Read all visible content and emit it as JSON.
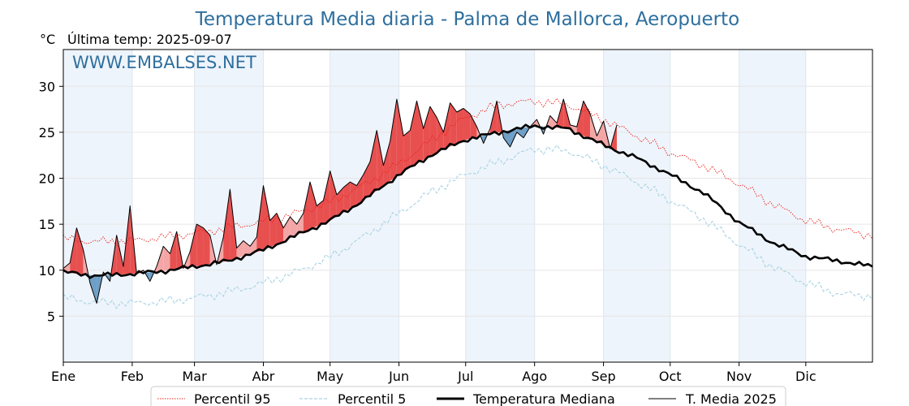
{
  "chart_data": {
    "type": "line",
    "title": "Temperatura Media diaria - Palma de Mallorca, Aeropuerto",
    "unit_label": "°C",
    "subtitle": "Última temp: 2025-09-07",
    "watermark": "WWW.EMBALSES.NET",
    "xlabel": "",
    "ylabel": "",
    "x_domain": [
      1,
      365
    ],
    "ylim": [
      0,
      34
    ],
    "y_ticks": [
      5,
      10,
      15,
      20,
      25,
      30
    ],
    "grid": true,
    "legend_position": "bottom",
    "months": [
      {
        "label": "Ene",
        "day": 1
      },
      {
        "label": "Feb",
        "day": 32
      },
      {
        "label": "Mar",
        "day": 60
      },
      {
        "label": "Abr",
        "day": 91
      },
      {
        "label": "May",
        "day": 121
      },
      {
        "label": "Jun",
        "day": 152
      },
      {
        "label": "Jul",
        "day": 182
      },
      {
        "label": "Ago",
        "day": 213
      },
      {
        "label": "Sep",
        "day": 244
      },
      {
        "label": "Oct",
        "day": 274
      },
      {
        "label": "Nov",
        "day": 305
      },
      {
        "label": "Dic",
        "day": 335
      }
    ],
    "colors": {
      "p95": "#e8231c",
      "p5": "#a9d3e3",
      "median": "#000000",
      "current": "#000000",
      "above_fill": "#f4a6a6",
      "above_strong": "#e85050",
      "below_fill": "#6f9fc6",
      "title": "#2e6f9e",
      "month_band": "#eef4fb"
    },
    "series": [
      {
        "name": "Percentil 95",
        "style": "dotted",
        "x": [
          1,
          15,
          32,
          46,
          60,
          75,
          91,
          106,
          121,
          136,
          152,
          167,
          182,
          197,
          213,
          228,
          244,
          259,
          274,
          289,
          305,
          320,
          335,
          350,
          365
        ],
        "values": [
          13.4,
          13.1,
          13.2,
          13.6,
          14.0,
          14.6,
          15.3,
          16.2,
          17.4,
          19.2,
          21.6,
          24.2,
          26.6,
          28.0,
          28.4,
          28.0,
          26.4,
          24.6,
          22.8,
          21.4,
          19.4,
          17.2,
          15.4,
          14.4,
          13.8
        ]
      },
      {
        "name": "Percentil 5",
        "style": "dashed",
        "x": [
          1,
          15,
          32,
          46,
          60,
          75,
          91,
          106,
          121,
          136,
          152,
          167,
          182,
          197,
          213,
          228,
          244,
          259,
          274,
          289,
          305,
          320,
          335,
          350,
          365
        ],
        "values": [
          7.0,
          6.5,
          6.4,
          6.6,
          7.0,
          7.6,
          8.6,
          9.8,
          11.4,
          13.6,
          16.2,
          18.6,
          20.4,
          21.8,
          23.2,
          23.0,
          21.4,
          19.6,
          17.6,
          15.6,
          12.8,
          10.4,
          8.6,
          7.4,
          7.2
        ]
      },
      {
        "name": "Temperatura Mediana",
        "style": "solid-thick",
        "x": [
          1,
          15,
          32,
          46,
          60,
          75,
          91,
          106,
          121,
          136,
          152,
          167,
          182,
          197,
          213,
          228,
          244,
          259,
          274,
          289,
          305,
          320,
          335,
          350,
          365
        ],
        "values": [
          9.8,
          9.4,
          9.6,
          9.9,
          10.4,
          11.0,
          12.2,
          13.8,
          15.4,
          17.6,
          20.4,
          22.6,
          24.2,
          25.0,
          25.7,
          25.4,
          23.6,
          22.2,
          20.4,
          18.4,
          15.2,
          13.0,
          11.5,
          11.0,
          10.4
        ]
      },
      {
        "name": "T. Media 2025",
        "style": "solid-thin",
        "x": [
          1,
          4,
          7,
          10,
          13,
          16,
          19,
          22,
          25,
          28,
          31,
          34,
          37,
          40,
          43,
          46,
          49,
          52,
          55,
          58,
          61,
          64,
          67,
          70,
          73,
          76,
          79,
          82,
          85,
          88,
          91,
          94,
          97,
          100,
          103,
          106,
          109,
          112,
          115,
          118,
          121,
          124,
          127,
          130,
          133,
          136,
          139,
          142,
          145,
          148,
          151,
          154,
          157,
          160,
          163,
          166,
          169,
          172,
          175,
          178,
          181,
          184,
          187,
          190,
          193,
          196,
          199,
          202,
          205,
          208,
          211,
          214,
          217,
          220,
          223,
          226,
          229,
          232,
          235,
          238,
          241,
          244,
          247,
          250
        ],
        "values": [
          10.2,
          10.8,
          14.6,
          12.2,
          8.6,
          6.4,
          9.8,
          8.8,
          13.8,
          10.4,
          17.0,
          9.6,
          10.0,
          8.8,
          10.4,
          12.6,
          11.8,
          14.2,
          10.2,
          12.0,
          15.0,
          14.6,
          13.8,
          10.6,
          13.6,
          18.8,
          12.4,
          13.2,
          12.6,
          13.6,
          19.2,
          15.4,
          16.2,
          14.6,
          15.8,
          15.0,
          16.2,
          19.6,
          17.0,
          17.6,
          20.8,
          18.2,
          19.0,
          19.6,
          19.2,
          20.4,
          21.8,
          25.2,
          21.4,
          24.0,
          28.6,
          24.6,
          25.2,
          28.4,
          25.4,
          27.8,
          26.6,
          25.0,
          28.2,
          27.2,
          27.6,
          27.0,
          25.6,
          23.8,
          25.4,
          28.4,
          24.4,
          23.4,
          25.0,
          24.4,
          25.6,
          26.4,
          24.8,
          26.8,
          26.0,
          28.6,
          25.8,
          25.6,
          28.4,
          27.0,
          24.6,
          26.2,
          23.2,
          25.8
        ]
      }
    ]
  }
}
